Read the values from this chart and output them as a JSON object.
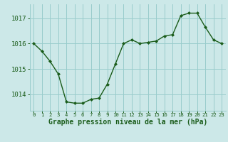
{
  "x": [
    0,
    1,
    2,
    3,
    4,
    5,
    6,
    7,
    8,
    9,
    10,
    11,
    12,
    13,
    14,
    15,
    16,
    17,
    18,
    19,
    20,
    21,
    22,
    23
  ],
  "y": [
    1016.0,
    1015.7,
    1015.3,
    1014.8,
    1013.7,
    1013.65,
    1013.65,
    1013.8,
    1013.85,
    1014.4,
    1015.2,
    1016.0,
    1016.15,
    1016.0,
    1016.05,
    1016.1,
    1016.3,
    1016.35,
    1017.1,
    1017.2,
    1017.2,
    1016.65,
    1016.15,
    1016.0
  ],
  "line_color": "#1a5c1a",
  "marker": "D",
  "marker_size": 2.0,
  "bg_color": "#cce8e8",
  "grid_color": "#99cccc",
  "tick_color": "#1a5c1a",
  "label_color": "#1a5c1a",
  "xlabel": "Graphe pression niveau de la mer (hPa)",
  "xlim": [
    -0.5,
    23.5
  ],
  "ylim": [
    1013.35,
    1017.55
  ],
  "yticks": [
    1014,
    1015,
    1016,
    1017
  ],
  "xticks": [
    0,
    1,
    2,
    3,
    4,
    5,
    6,
    7,
    8,
    9,
    10,
    11,
    12,
    13,
    14,
    15,
    16,
    17,
    18,
    19,
    20,
    21,
    22,
    23
  ],
  "ytick_fontsize": 6.5,
  "xtick_fontsize": 5.2,
  "xlabel_fontsize": 7.0,
  "linewidth": 1.0
}
